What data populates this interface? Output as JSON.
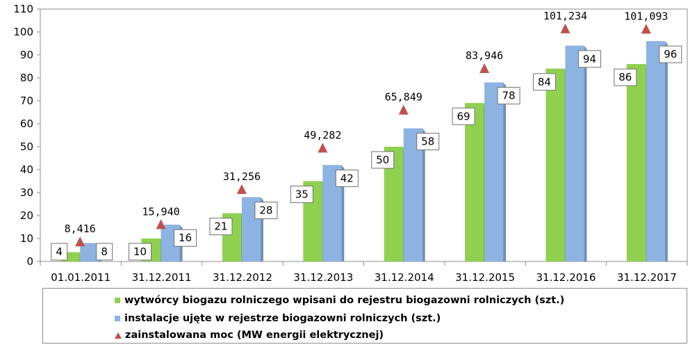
{
  "chart_data": {
    "type": "bar",
    "categories": [
      "01.01.2011",
      "31.12.2011",
      "31.12.2012",
      "31.12.2013",
      "31.12.2014",
      "31.12.2015",
      "31.12.2016",
      "31.12.2017"
    ],
    "series": [
      {
        "name": "wytwórcy biogazu rolniczego wpisani do rejestru biogazowni rolniczych (szt.)",
        "kind": "bar",
        "color": "#8fd14f",
        "values": [
          4,
          10,
          21,
          35,
          50,
          69,
          84,
          86
        ],
        "labels": [
          "4",
          "10",
          "21",
          "35",
          "50",
          "69",
          "84",
          "86"
        ]
      },
      {
        "name": "instalacje ujęte w rejestrze biogazowni rolniczych (szt.)",
        "kind": "bar",
        "color": "#8db3e2",
        "values": [
          8,
          16,
          28,
          42,
          58,
          78,
          94,
          96
        ],
        "labels": [
          "8",
          "16",
          "28",
          "42",
          "58",
          "78",
          "94",
          "96"
        ]
      },
      {
        "name": "zainstalowana moc (MW energii elektrycznej)",
        "kind": "marker",
        "marker": "triangle",
        "color": "#c0504d",
        "values": [
          8.416,
          15.94,
          31.256,
          49.282,
          65.849,
          83.946,
          101.234,
          101.093
        ],
        "labels": [
          "8,416",
          "15,940",
          "31,256",
          "49,282",
          "65,849",
          "83,946",
          "101,234",
          "101,093"
        ]
      }
    ],
    "ylim": [
      0,
      110
    ],
    "yticks": [
      "0",
      "10",
      "20",
      "30",
      "40",
      "50",
      "60",
      "70",
      "80",
      "90",
      "100",
      "110"
    ],
    "xlabel": "",
    "ylabel": "",
    "title": "",
    "grid": false,
    "legend_position": "bottom"
  }
}
